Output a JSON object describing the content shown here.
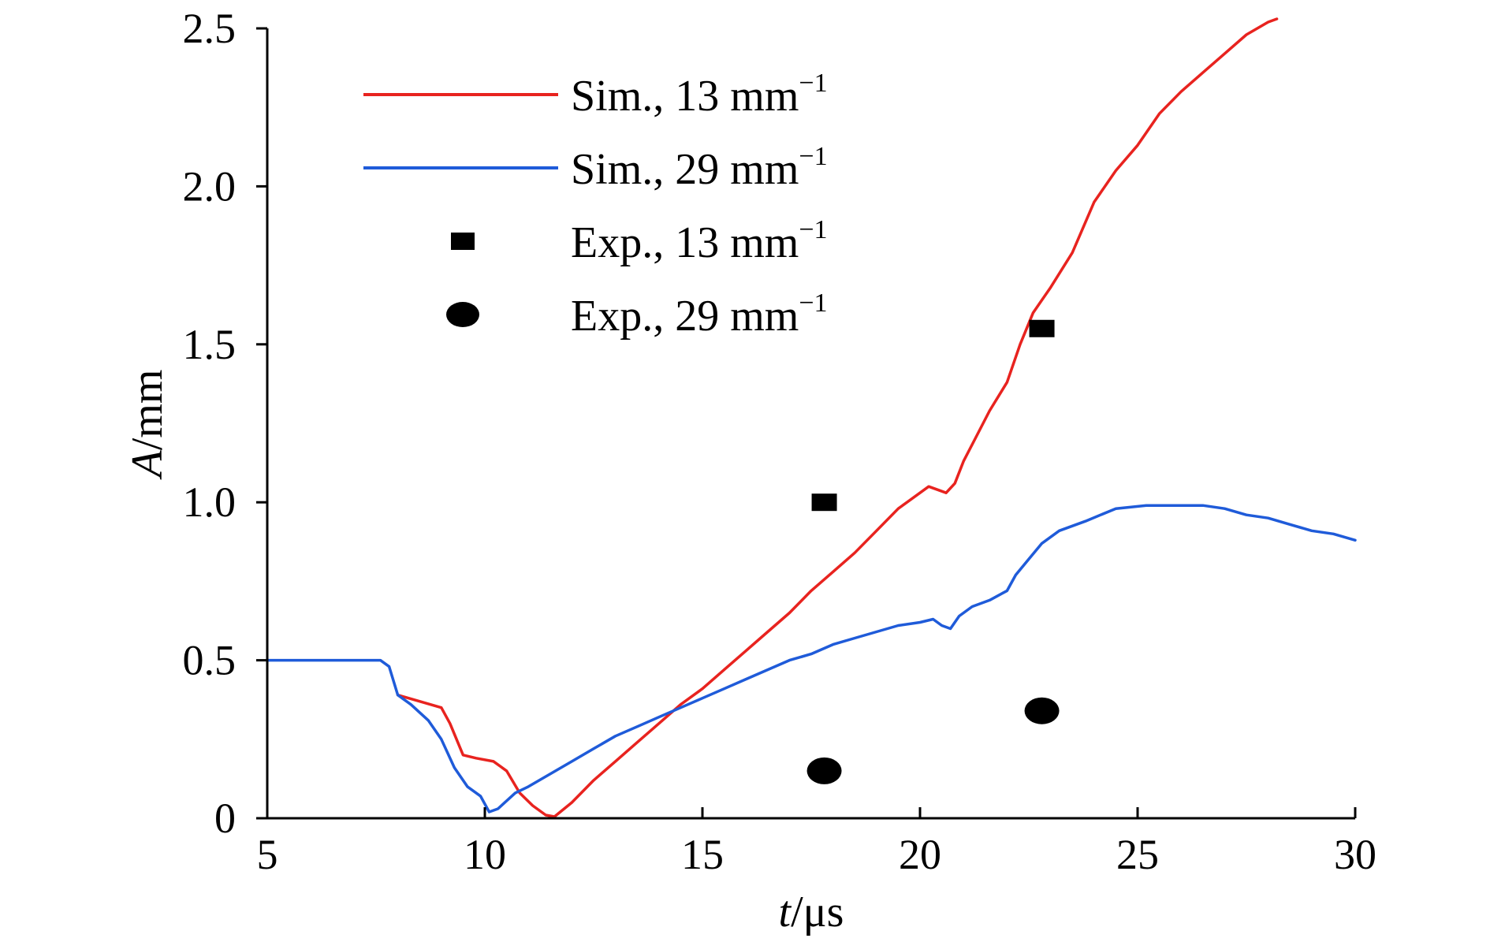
{
  "chart_data": {
    "type": "line",
    "title": "",
    "xlabel": {
      "var": "t",
      "unit": "/μs"
    },
    "ylabel": {
      "var": "A",
      "unit": "/mm"
    },
    "xlim": [
      5,
      30
    ],
    "ylim": [
      0,
      2.5
    ],
    "xticks": [
      {
        "value": 5,
        "label": "5"
      },
      {
        "value": 10,
        "label": "10"
      },
      {
        "value": 15,
        "label": "15"
      },
      {
        "value": 20,
        "label": "20"
      },
      {
        "value": 25,
        "label": "25"
      },
      {
        "value": 30,
        "label": "30"
      }
    ],
    "yticks": [
      {
        "value": 0,
        "label": "0"
      },
      {
        "value": 0.5,
        "label": "0.5"
      },
      {
        "value": 1.0,
        "label": "1.0"
      },
      {
        "value": 1.5,
        "label": "1.5"
      },
      {
        "value": 2.0,
        "label": "2.0"
      },
      {
        "value": 2.5,
        "label": "2.5"
      }
    ],
    "grid": false,
    "legend_position": "top-left",
    "series": [
      {
        "name": "Sim., 13 mm",
        "name_sup": "−1",
        "kind": "line",
        "color": "#e8231f",
        "x": [
          8.0,
          8.5,
          9.0,
          9.2,
          9.5,
          9.8,
          10.2,
          10.5,
          10.8,
          11.1,
          11.4,
          11.6,
          12.0,
          12.5,
          13.0,
          13.5,
          14.0,
          14.5,
          15.0,
          15.5,
          16.0,
          16.5,
          17.0,
          17.5,
          18.0,
          18.5,
          19.0,
          19.5,
          20.0,
          20.2,
          20.4,
          20.6,
          20.8,
          21.0,
          21.3,
          21.6,
          22.0,
          22.3,
          22.6,
          23.0,
          23.5,
          24.0,
          24.5,
          25.0,
          25.5,
          26.0,
          26.5,
          27.0,
          27.5,
          28.0,
          28.2
        ],
        "y": [
          0.39,
          0.37,
          0.35,
          0.3,
          0.2,
          0.19,
          0.18,
          0.15,
          0.08,
          0.04,
          0.01,
          0.005,
          0.05,
          0.12,
          0.18,
          0.24,
          0.3,
          0.36,
          0.41,
          0.47,
          0.53,
          0.59,
          0.65,
          0.72,
          0.78,
          0.84,
          0.91,
          0.98,
          1.03,
          1.05,
          1.04,
          1.03,
          1.06,
          1.13,
          1.21,
          1.29,
          1.38,
          1.5,
          1.6,
          1.68,
          1.79,
          1.95,
          2.05,
          2.13,
          2.23,
          2.3,
          2.36,
          2.42,
          2.48,
          2.52,
          2.53
        ]
      },
      {
        "name": "Sim., 29 mm",
        "name_sup": "−1",
        "kind": "line",
        "color": "#1f5bd9",
        "x": [
          5.0,
          7.6,
          7.8,
          8.0,
          8.3,
          8.7,
          9.0,
          9.3,
          9.6,
          9.9,
          10.1,
          10.3,
          10.7,
          11.0,
          11.5,
          12.0,
          12.5,
          13.0,
          13.5,
          14.0,
          14.5,
          15.0,
          15.5,
          16.0,
          16.5,
          17.0,
          17.5,
          18.0,
          18.5,
          19.0,
          19.5,
          20.0,
          20.3,
          20.5,
          20.7,
          20.9,
          21.2,
          21.6,
          22.0,
          22.2,
          22.5,
          22.8,
          23.2,
          23.8,
          24.5,
          25.2,
          26.0,
          26.5,
          27.0,
          27.5,
          28.0,
          28.5,
          29.0,
          29.5,
          30.0
        ],
        "y": [
          0.5,
          0.5,
          0.48,
          0.39,
          0.36,
          0.31,
          0.25,
          0.16,
          0.1,
          0.07,
          0.02,
          0.03,
          0.08,
          0.1,
          0.14,
          0.18,
          0.22,
          0.26,
          0.29,
          0.32,
          0.35,
          0.38,
          0.41,
          0.44,
          0.47,
          0.5,
          0.52,
          0.55,
          0.57,
          0.59,
          0.61,
          0.62,
          0.63,
          0.61,
          0.6,
          0.64,
          0.67,
          0.69,
          0.72,
          0.77,
          0.82,
          0.87,
          0.91,
          0.94,
          0.98,
          0.99,
          0.99,
          0.99,
          0.98,
          0.96,
          0.95,
          0.93,
          0.91,
          0.9,
          0.88
        ]
      },
      {
        "name": "Exp., 13 mm",
        "name_sup": "−1",
        "kind": "marker",
        "marker": "square",
        "color": "#000000",
        "x": [
          17.8,
          22.8
        ],
        "y": [
          1.0,
          1.55
        ]
      },
      {
        "name": "Exp., 29 mm",
        "name_sup": "−1",
        "kind": "marker",
        "marker": "circle",
        "color": "#000000",
        "x": [
          17.8,
          22.8
        ],
        "y": [
          0.15,
          0.34
        ]
      }
    ]
  }
}
